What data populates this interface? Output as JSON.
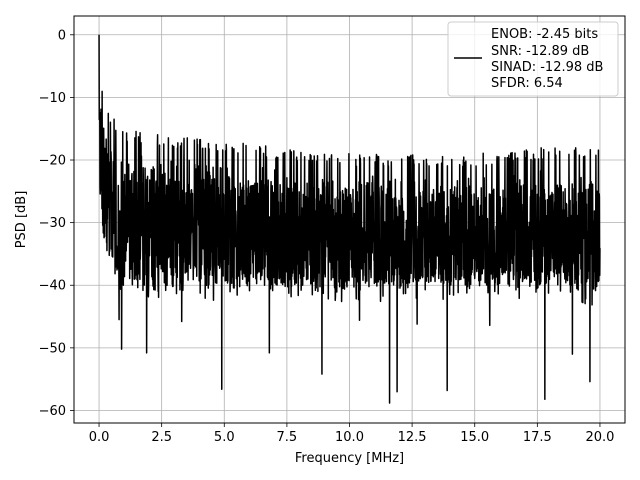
{
  "chart_data": {
    "type": "line",
    "xlabel": "Frequency [MHz]",
    "ylabel": "PSD [dB]",
    "xlim": [
      -1,
      21
    ],
    "ylim": [
      -62,
      3
    ],
    "x_ticks": [
      0.0,
      2.5,
      5.0,
      7.5,
      10.0,
      12.5,
      15.0,
      17.5,
      20.0
    ],
    "x_tick_labels": [
      "0.0",
      "2.5",
      "5.0",
      "7.5",
      "10.0",
      "12.5",
      "15.0",
      "17.5",
      "20.0"
    ],
    "y_ticks": [
      0,
      -10,
      -20,
      -30,
      -40,
      -50,
      -60
    ],
    "y_tick_labels": [
      "0",
      "−10",
      "−20",
      "−30",
      "−40",
      "−50",
      "−60"
    ],
    "grid": true,
    "legend_position": "top-right",
    "line_color": "#000000",
    "series": [
      {
        "legend_lines": [
          "ENOB: -2.45 bits",
          "SNR: -12.89 dB",
          "SINAD: -12.98 dB",
          "SFDR: 6.54"
        ],
        "x_range": [
          0,
          20
        ],
        "peak": {
          "x": 0.0,
          "y": 0
        },
        "envelope": [
          {
            "x": 0.0,
            "upper": 0,
            "lower": -26
          },
          {
            "x": 0.1,
            "upper": -8,
            "lower": -28
          },
          {
            "x": 0.3,
            "upper": -12,
            "lower": -35
          },
          {
            "x": 1.0,
            "upper": -15,
            "lower": -40
          },
          {
            "x": 2.5,
            "upper": -16,
            "lower": -40
          },
          {
            "x": 5.0,
            "upper": -17,
            "lower": -40
          },
          {
            "x": 7.5,
            "upper": -18,
            "lower": -40
          },
          {
            "x": 10.0,
            "upper": -19,
            "lower": -40
          },
          {
            "x": 12.5,
            "upper": -19,
            "lower": -40
          },
          {
            "x": 15.0,
            "upper": -19,
            "lower": -40
          },
          {
            "x": 17.5,
            "upper": -18,
            "lower": -40
          },
          {
            "x": 20.0,
            "upper": -18,
            "lower": -41
          }
        ],
        "dips": [
          {
            "x": 0.8,
            "y": -45.5
          },
          {
            "x": 0.9,
            "y": -50.2
          },
          {
            "x": 1.9,
            "y": -50.8
          },
          {
            "x": 3.3,
            "y": -45.8
          },
          {
            "x": 4.9,
            "y": -56.6
          },
          {
            "x": 6.8,
            "y": -50.8
          },
          {
            "x": 8.9,
            "y": -54.2
          },
          {
            "x": 10.4,
            "y": -45.6
          },
          {
            "x": 11.6,
            "y": -58.8
          },
          {
            "x": 11.9,
            "y": -57.0
          },
          {
            "x": 12.7,
            "y": -46.2
          },
          {
            "x": 13.9,
            "y": -56.8
          },
          {
            "x": 15.6,
            "y": -46.4
          },
          {
            "x": 17.8,
            "y": -58.2
          },
          {
            "x": 18.9,
            "y": -51.0
          },
          {
            "x": 19.6,
            "y": -55.4
          }
        ]
      }
    ]
  }
}
